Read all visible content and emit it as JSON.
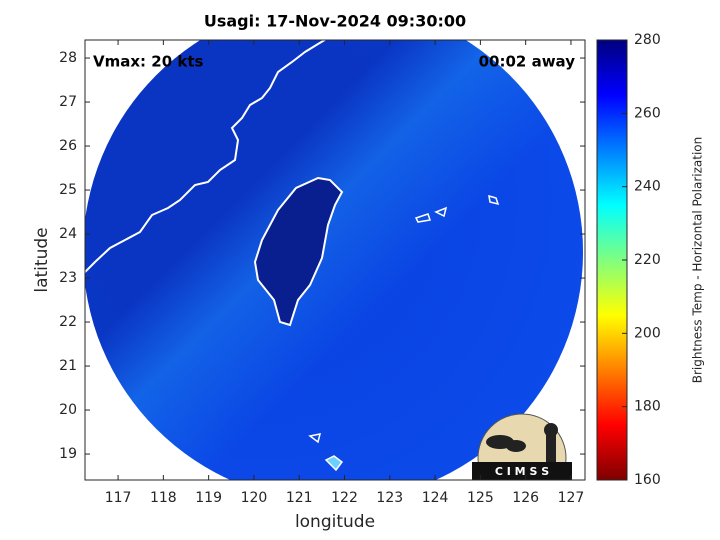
{
  "chart_data": {
    "type": "map",
    "title": "Usagi: 17-Nov-2024 09:30:00",
    "xlabel": "longitude",
    "ylabel": "latitude",
    "xlim": [
      116.27,
      127.31
    ],
    "ylim": [
      18.41,
      28.41
    ],
    "xticks": [
      117,
      118,
      119,
      120,
      121,
      122,
      123,
      124,
      125,
      126,
      127
    ],
    "yticks": [
      19,
      20,
      21,
      22,
      23,
      24,
      25,
      26,
      27,
      28
    ],
    "annotations": [
      "Vmax: 20 kts",
      "00:02 away"
    ],
    "colorbar_label": "Brightness Temp - Horizontal Polarization",
    "clim": [
      160,
      280
    ],
    "cticks": [
      160,
      180,
      200,
      220,
      240,
      260,
      280
    ],
    "logo_text": "C I M S S"
  }
}
